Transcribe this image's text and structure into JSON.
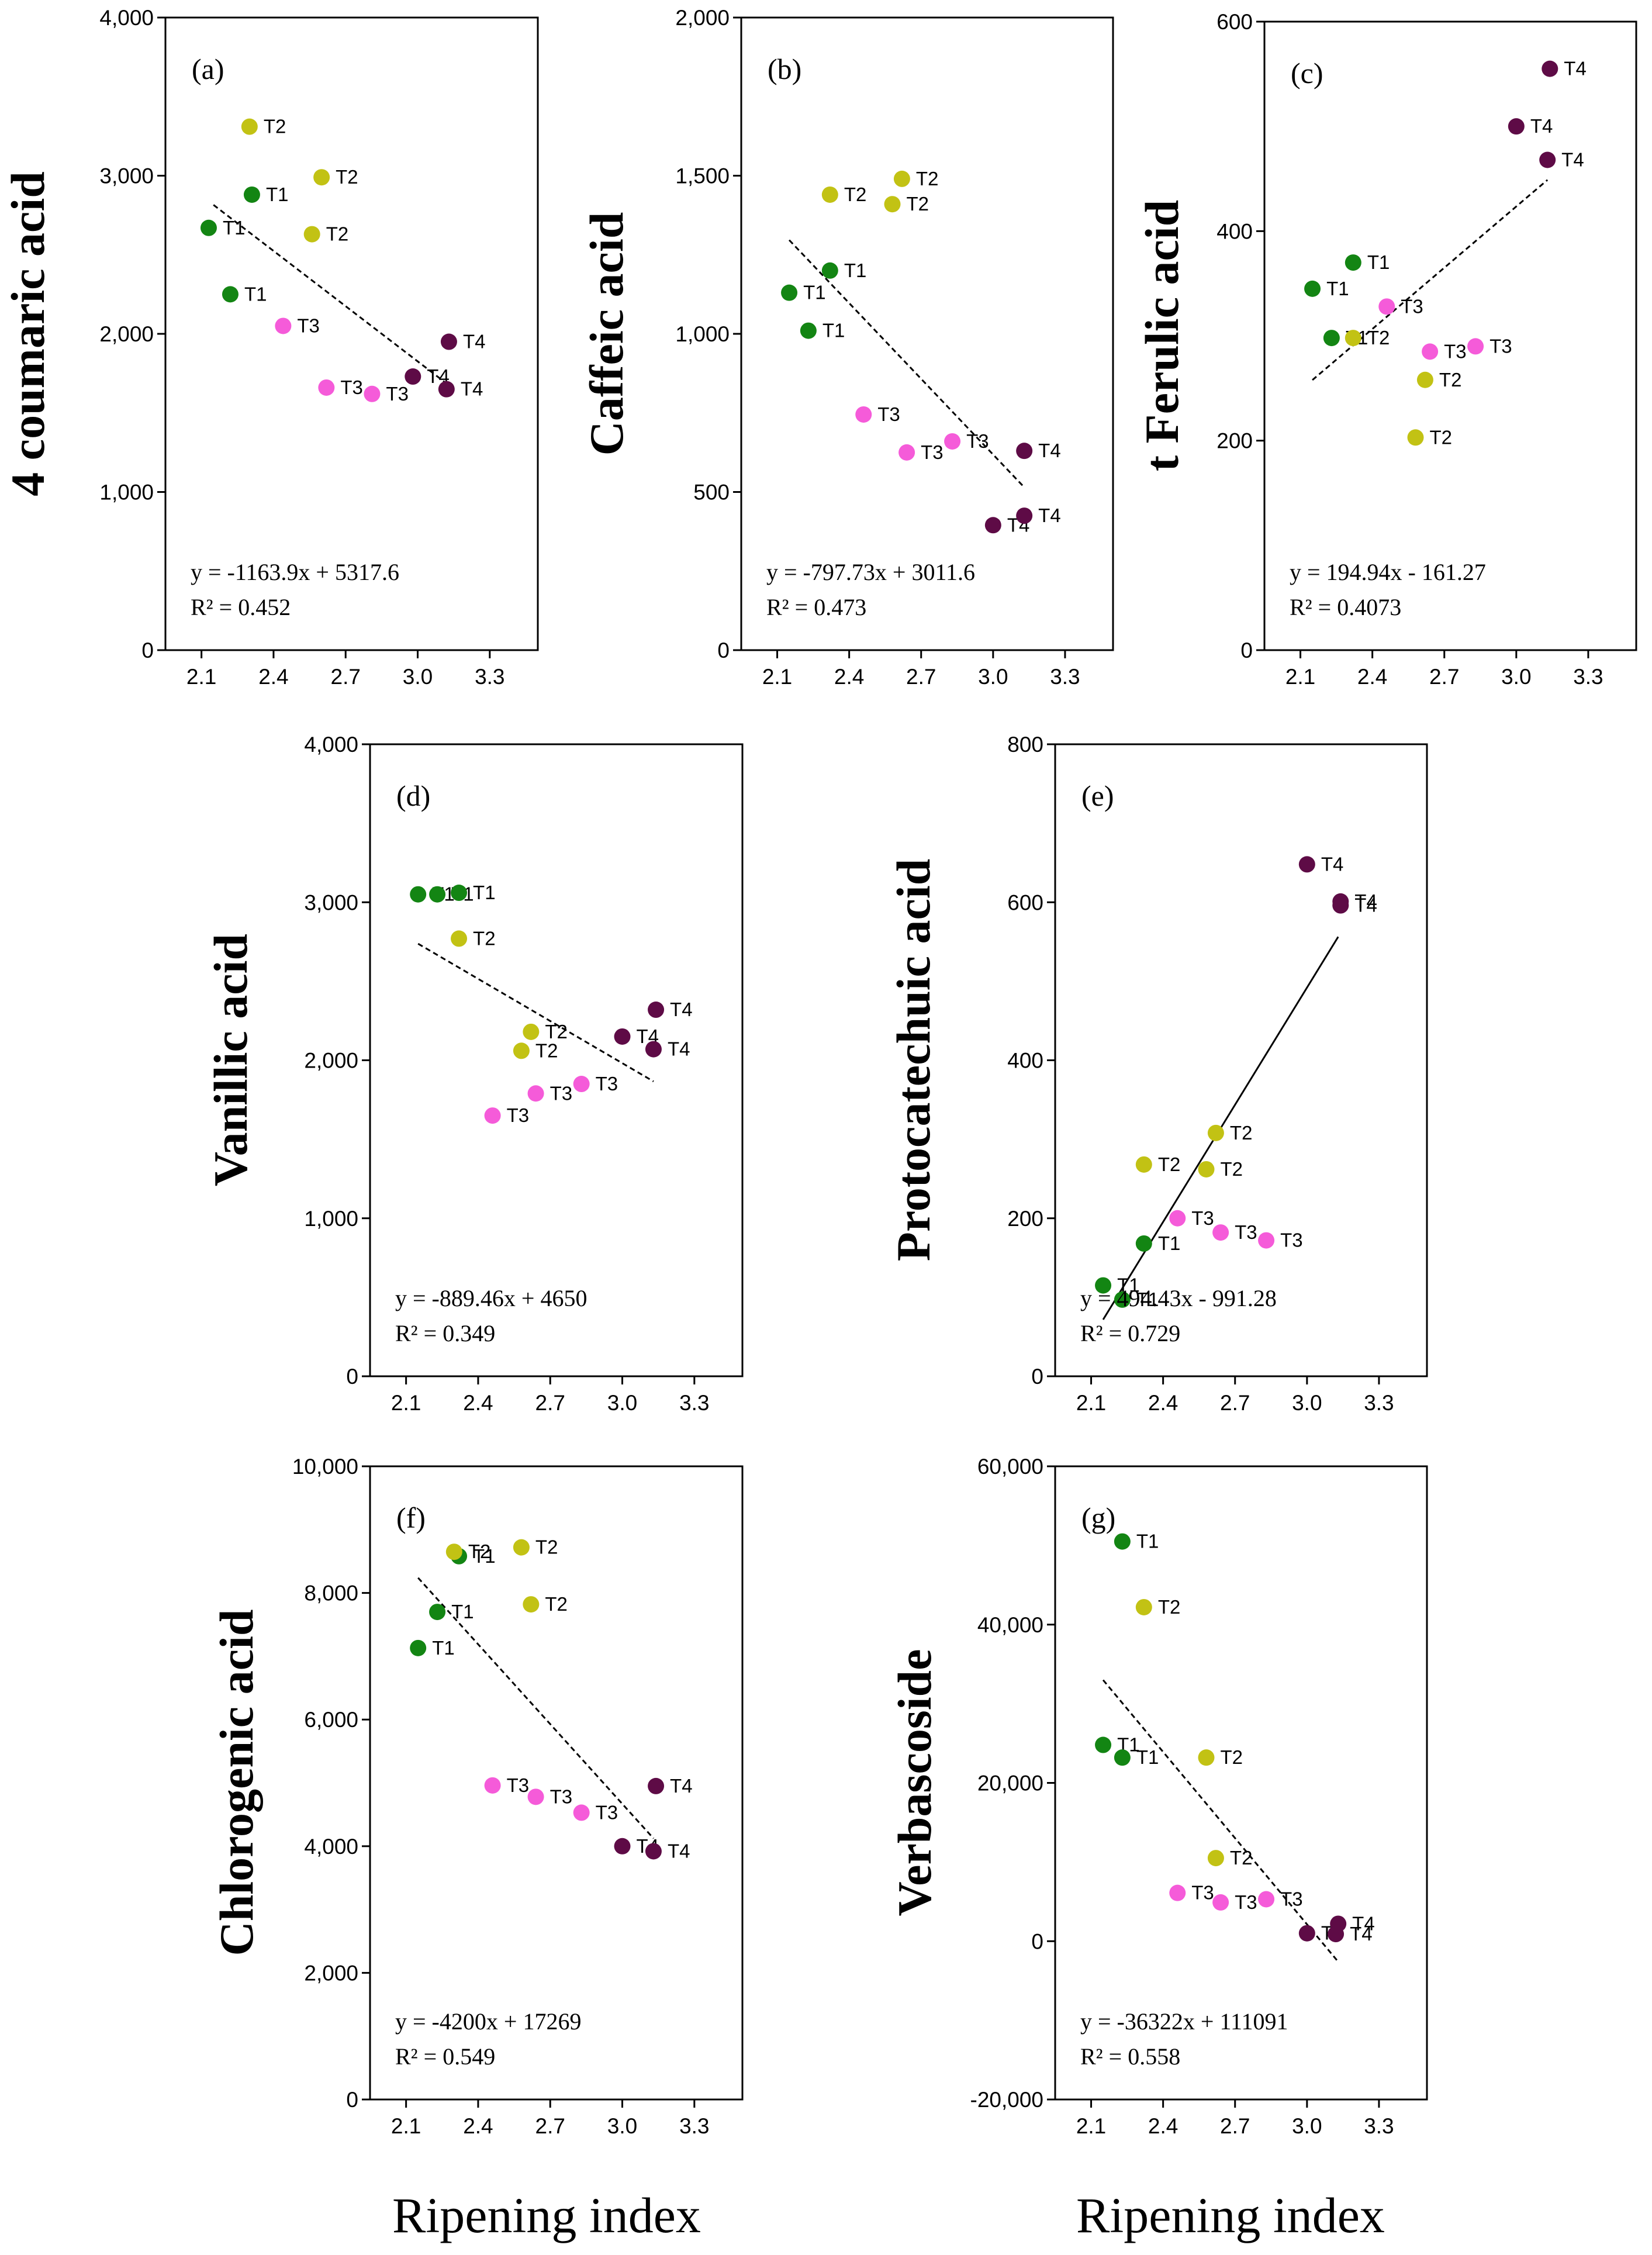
{
  "figure": {
    "x_axis_label": "Ripening index",
    "x_ticks": [
      "2.1",
      "2.4",
      "2.7",
      "3.0",
      "3.3"
    ],
    "x_range": [
      1.95,
      3.5
    ]
  },
  "colors": {
    "T1": "#138513",
    "T2": "#c2c214",
    "T3": "#f55bd9",
    "T4": "#5e0b46"
  },
  "chart_data": [
    {
      "id": "a",
      "type": "scatter",
      "tag": "(a)",
      "ylabel": "4 coumaric acid",
      "ylim": [
        0,
        4000
      ],
      "yticks": [
        "0",
        "1,000",
        "2,000",
        "3,000",
        "4,000"
      ],
      "ytick_values": [
        0,
        1000,
        2000,
        3000,
        4000
      ],
      "equation": "y = -1163.9x + 5317.6",
      "r2": "R² = 0.452",
      "fit": {
        "slope": -1163.9,
        "intercept": 5317.6,
        "x0": 2.15,
        "x1": 3.12,
        "style": "dashed"
      },
      "points": [
        {
          "x": 2.13,
          "y": 2670,
          "g": "T1",
          "label": "T1"
        },
        {
          "x": 2.31,
          "y": 2880,
          "g": "T1",
          "label": "T1"
        },
        {
          "x": 2.22,
          "y": 2250,
          "g": "T1",
          "label": "T1"
        },
        {
          "x": 2.3,
          "y": 3310,
          "g": "T2",
          "label": "T2"
        },
        {
          "x": 2.6,
          "y": 2990,
          "g": "T2",
          "label": "T2"
        },
        {
          "x": 2.56,
          "y": 2630,
          "g": "T2",
          "label": "T2"
        },
        {
          "x": 2.44,
          "y": 2050,
          "g": "T3",
          "label": "T3"
        },
        {
          "x": 2.62,
          "y": 1660,
          "g": "T3",
          "label": "T3"
        },
        {
          "x": 2.81,
          "y": 1620,
          "g": "T3",
          "label": "T3"
        },
        {
          "x": 2.98,
          "y": 1730,
          "g": "T4",
          "label": "T4"
        },
        {
          "x": 3.13,
          "y": 1950,
          "g": "T4",
          "label": "T4"
        },
        {
          "x": 3.12,
          "y": 1650,
          "g": "T4",
          "label": "T4"
        }
      ]
    },
    {
      "id": "b",
      "type": "scatter",
      "tag": "(b)",
      "ylabel": "Caffeic acid",
      "ylim": [
        0,
        2000
      ],
      "yticks": [
        "0",
        "500",
        "1,000",
        "1,500",
        "2,000"
      ],
      "ytick_values": [
        0,
        500,
        1000,
        1500,
        2000
      ],
      "equation": "y = -797.73x + 3011.6",
      "r2": "R² = 0.473",
      "fit": {
        "slope": -797.73,
        "intercept": 3011.6,
        "x0": 2.15,
        "x1": 3.13,
        "style": "dashed"
      },
      "points": [
        {
          "x": 2.15,
          "y": 1130,
          "g": "T1",
          "label": "T1"
        },
        {
          "x": 2.32,
          "y": 1200,
          "g": "T1",
          "label": "T1"
        },
        {
          "x": 2.23,
          "y": 1010,
          "g": "T1",
          "label": "T1"
        },
        {
          "x": 2.32,
          "y": 1440,
          "g": "T2",
          "label": "T2"
        },
        {
          "x": 2.62,
          "y": 1490,
          "g": "T2",
          "label": "T2"
        },
        {
          "x": 2.58,
          "y": 1410,
          "g": "T2",
          "label": "T2"
        },
        {
          "x": 2.46,
          "y": 745,
          "g": "T3",
          "label": "T3"
        },
        {
          "x": 2.64,
          "y": 625,
          "g": "T3",
          "label": "T3"
        },
        {
          "x": 2.83,
          "y": 660,
          "g": "T3",
          "label": "T3"
        },
        {
          "x": 3.13,
          "y": 630,
          "g": "T4",
          "label": "T4"
        },
        {
          "x": 3.0,
          "y": 395,
          "g": "T4",
          "label": "T4"
        },
        {
          "x": 3.13,
          "y": 425,
          "g": "T4",
          "label": "T4"
        }
      ]
    },
    {
      "id": "c",
      "type": "scatter",
      "tag": "(c)",
      "ylabel": "t Ferulic acid",
      "ylim": [
        0,
        600
      ],
      "yticks": [
        "0",
        "200",
        "400",
        "600"
      ],
      "ytick_values": [
        0,
        200,
        400,
        600
      ],
      "equation": "y = 194.94x - 161.27",
      "r2": "R² = 0.4073",
      "fit": {
        "slope": 194.94,
        "intercept": -161.27,
        "x0": 2.15,
        "x1": 3.13,
        "style": "dashed"
      },
      "points": [
        {
          "x": 2.15,
          "y": 345,
          "g": "T1",
          "label": "T1"
        },
        {
          "x": 2.32,
          "y": 370,
          "g": "T1",
          "label": "T1"
        },
        {
          "x": 2.23,
          "y": 298,
          "g": "T1",
          "label": "T1"
        },
        {
          "x": 2.32,
          "y": 298,
          "g": "T2",
          "label": "T2"
        },
        {
          "x": 2.62,
          "y": 258,
          "g": "T2",
          "label": "T2"
        },
        {
          "x": 2.58,
          "y": 203,
          "g": "T2",
          "label": "T2"
        },
        {
          "x": 2.46,
          "y": 328,
          "g": "T3",
          "label": "T3"
        },
        {
          "x": 2.64,
          "y": 285,
          "g": "T3",
          "label": "T3"
        },
        {
          "x": 2.83,
          "y": 290,
          "g": "T3",
          "label": "T3"
        },
        {
          "x": 3.14,
          "y": 555,
          "g": "T4",
          "label": "T4"
        },
        {
          "x": 3.0,
          "y": 500,
          "g": "T4",
          "label": "T4"
        },
        {
          "x": 3.13,
          "y": 468,
          "g": "T4",
          "label": "T4"
        }
      ]
    },
    {
      "id": "d",
      "type": "scatter",
      "tag": "(d)",
      "ylabel": "Vanillic acid",
      "ylim": [
        0,
        4000
      ],
      "yticks": [
        "0",
        "1,000",
        "2,000",
        "3,000",
        "4,000"
      ],
      "ytick_values": [
        0,
        1000,
        2000,
        3000,
        4000
      ],
      "equation": "y = -889.46x + 4650",
      "r2": "R² = 0.349",
      "fit": {
        "slope": -889.46,
        "intercept": 4650,
        "x0": 2.15,
        "x1": 3.13,
        "style": "dashed"
      },
      "points": [
        {
          "x": 2.15,
          "y": 3050,
          "g": "T1",
          "label": "T1"
        },
        {
          "x": 2.23,
          "y": 3050,
          "g": "T1",
          "label": "T1"
        },
        {
          "x": 2.32,
          "y": 3060,
          "g": "T1",
          "label": "T1"
        },
        {
          "x": 2.32,
          "y": 2770,
          "g": "T2",
          "label": "T2"
        },
        {
          "x": 2.62,
          "y": 2180,
          "g": "T2",
          "label": "T2"
        },
        {
          "x": 2.58,
          "y": 2060,
          "g": "T2",
          "label": "T2"
        },
        {
          "x": 2.46,
          "y": 1650,
          "g": "T3",
          "label": "T3"
        },
        {
          "x": 2.64,
          "y": 1790,
          "g": "T3",
          "label": "T3"
        },
        {
          "x": 2.83,
          "y": 1850,
          "g": "T3",
          "label": "T3"
        },
        {
          "x": 3.0,
          "y": 2150,
          "g": "T4",
          "label": "T4"
        },
        {
          "x": 3.14,
          "y": 2320,
          "g": "T4",
          "label": "T4"
        },
        {
          "x": 3.13,
          "y": 2070,
          "g": "T4",
          "label": "T4"
        }
      ]
    },
    {
      "id": "e",
      "type": "scatter",
      "tag": "(e)",
      "ylabel": "Protocatechuic acid",
      "ylim": [
        0,
        800
      ],
      "yticks": [
        "0",
        "200",
        "400",
        "600",
        "800"
      ],
      "ytick_values": [
        0,
        200,
        400,
        600,
        800
      ],
      "equation": "y = 494.43x - 991.28",
      "r2": "R² = 0.729",
      "fit": {
        "slope": 494.43,
        "intercept": -991.28,
        "x0": 2.15,
        "x1": 3.13,
        "style": "solid"
      },
      "points": [
        {
          "x": 2.15,
          "y": 115,
          "g": "T1",
          "label": "T1"
        },
        {
          "x": 2.23,
          "y": 97,
          "g": "T1",
          "label": "T1"
        },
        {
          "x": 2.32,
          "y": 168,
          "g": "T1",
          "label": "T1"
        },
        {
          "x": 2.32,
          "y": 268,
          "g": "T2",
          "label": "T2"
        },
        {
          "x": 2.62,
          "y": 308,
          "g": "T2",
          "label": "T2"
        },
        {
          "x": 2.58,
          "y": 262,
          "g": "T2",
          "label": "T2"
        },
        {
          "x": 2.46,
          "y": 200,
          "g": "T3",
          "label": "T3"
        },
        {
          "x": 2.64,
          "y": 182,
          "g": "T3",
          "label": "T3"
        },
        {
          "x": 2.83,
          "y": 172,
          "g": "T3",
          "label": "T3"
        },
        {
          "x": 3.0,
          "y": 648,
          "g": "T4",
          "label": "T4"
        },
        {
          "x": 3.14,
          "y": 601,
          "g": "T4",
          "label": "T4"
        },
        {
          "x": 3.14,
          "y": 596,
          "g": "T4",
          "label": "T4"
        }
      ]
    },
    {
      "id": "f",
      "type": "scatter",
      "tag": "(f)",
      "ylabel": "Chlorogenic acid",
      "ylim": [
        0,
        10000
      ],
      "yticks": [
        "0",
        "2,000",
        "4,000",
        "6,000",
        "8,000",
        "10,000"
      ],
      "ytick_values": [
        0,
        2000,
        4000,
        6000,
        8000,
        10000
      ],
      "equation": "y = -4200x + 17269",
      "r2": "R² = 0.549",
      "fit": {
        "slope": -4200,
        "intercept": 17269,
        "x0": 2.15,
        "x1": 3.13,
        "style": "dashed"
      },
      "points": [
        {
          "x": 2.15,
          "y": 7130,
          "g": "T1",
          "label": "T1"
        },
        {
          "x": 2.23,
          "y": 7700,
          "g": "T1",
          "label": "T1"
        },
        {
          "x": 2.32,
          "y": 8580,
          "g": "T1",
          "label": "T1"
        },
        {
          "x": 2.3,
          "y": 8650,
          "g": "T2",
          "label": "T2"
        },
        {
          "x": 2.58,
          "y": 8720,
          "g": "T2",
          "label": "T2"
        },
        {
          "x": 2.62,
          "y": 7820,
          "g": "T2",
          "label": "T2"
        },
        {
          "x": 2.46,
          "y": 4960,
          "g": "T3",
          "label": "T3"
        },
        {
          "x": 2.64,
          "y": 4780,
          "g": "T3",
          "label": "T3"
        },
        {
          "x": 2.83,
          "y": 4530,
          "g": "T3",
          "label": "T3"
        },
        {
          "x": 3.14,
          "y": 4950,
          "g": "T4",
          "label": "T4"
        },
        {
          "x": 3.0,
          "y": 4000,
          "g": "T4",
          "label": "T4"
        },
        {
          "x": 3.13,
          "y": 3920,
          "g": "T4",
          "label": "T4"
        }
      ]
    },
    {
      "id": "g",
      "type": "scatter",
      "tag": "(g)",
      "ylabel": "Verbascoside",
      "ylim": [
        -20000,
        60000
      ],
      "yticks": [
        "-20,000",
        "0",
        "20,000",
        "40,000",
        "60,000"
      ],
      "ytick_values": [
        -20000,
        0,
        20000,
        40000,
        60000
      ],
      "equation": "y = -36322x + 111091",
      "r2": "R² = 0.558",
      "fit": {
        "slope": -36322,
        "intercept": 111091,
        "x0": 2.15,
        "x1": 3.13,
        "style": "dashed"
      },
      "points": [
        {
          "x": 2.23,
          "y": 50500,
          "g": "T1",
          "label": "T1"
        },
        {
          "x": 2.15,
          "y": 24800,
          "g": "T1",
          "label": "T1"
        },
        {
          "x": 2.23,
          "y": 23200,
          "g": "T1",
          "label": "T1"
        },
        {
          "x": 2.32,
          "y": 42200,
          "g": "T2",
          "label": "T2"
        },
        {
          "x": 2.58,
          "y": 23200,
          "g": "T2",
          "label": "T2"
        },
        {
          "x": 2.62,
          "y": 10500,
          "g": "T2",
          "label": "T2"
        },
        {
          "x": 2.46,
          "y": 6100,
          "g": "T3",
          "label": "T3"
        },
        {
          "x": 2.64,
          "y": 4900,
          "g": "T3",
          "label": "T3"
        },
        {
          "x": 2.83,
          "y": 5300,
          "g": "T3",
          "label": "T3"
        },
        {
          "x": 3.0,
          "y": 1000,
          "g": "T4",
          "label": "T4"
        },
        {
          "x": 3.13,
          "y": 2200,
          "g": "T4",
          "label": "T4"
        },
        {
          "x": 3.12,
          "y": 900,
          "g": "T4",
          "label": "T4"
        }
      ]
    }
  ]
}
